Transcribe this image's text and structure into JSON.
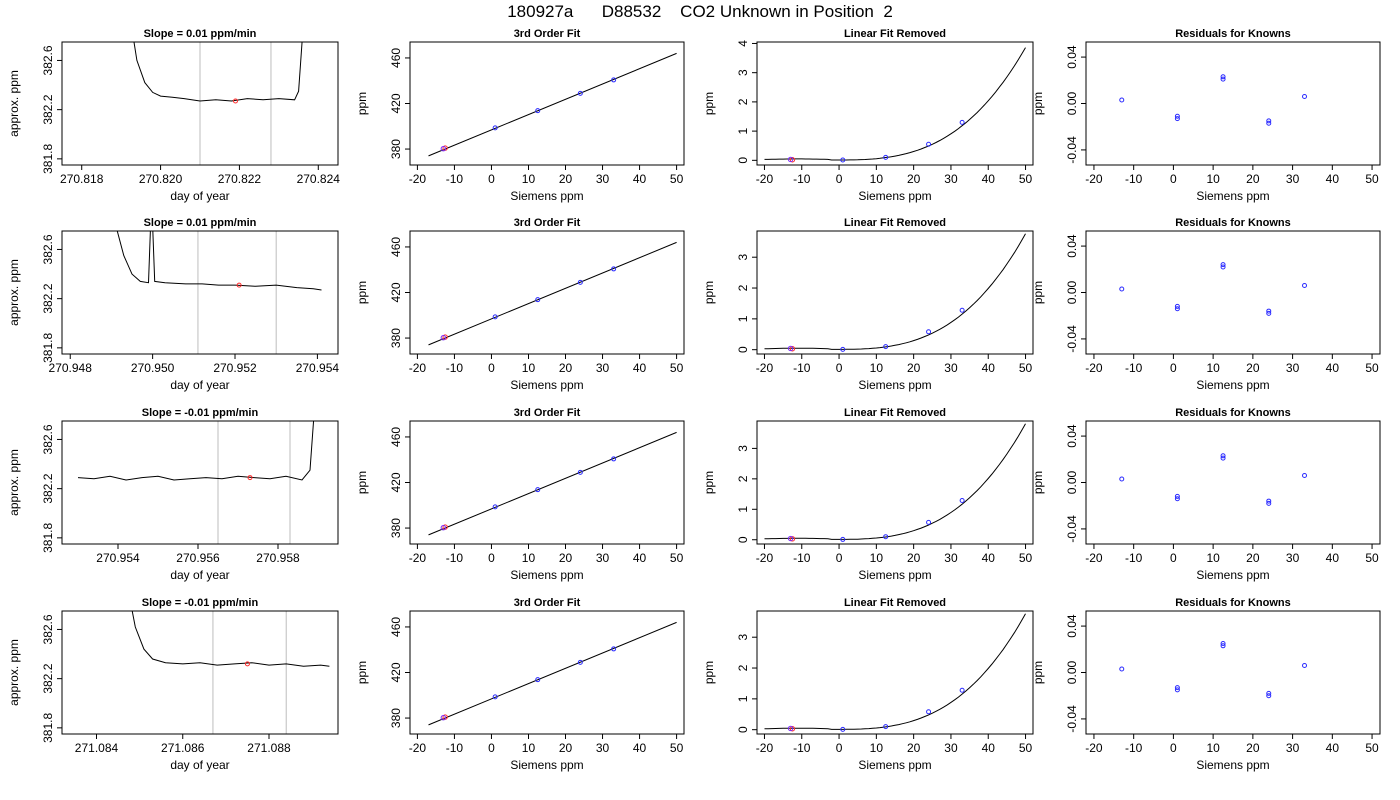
{
  "title": "180927a      D88532    CO2 Unknown in Position  2",
  "colors": {
    "trace": "#000000",
    "marker_red": "#ff2a2a",
    "marker_blue": "#2b2bff",
    "marker_purple": "#7a2bff",
    "vline": "#c8c8c8"
  },
  "chart_data": [
    {
      "type": "line",
      "title": "Slope =  0.01  ppm/min",
      "xlabel": "day of year",
      "ylabel": "approx. ppm",
      "xlim": [
        270.8175,
        270.8245
      ],
      "ylim": [
        381.75,
        382.75
      ],
      "xticks": [
        270.818,
        270.82,
        270.822,
        270.824
      ],
      "xtick_labels": [
        "270.818",
        "270.820",
        "270.822",
        "270.824"
      ],
      "yticks": [
        381.8,
        382.2,
        382.6
      ],
      "ytick_labels": [
        "381.8",
        "382.2",
        "382.6"
      ],
      "vlines": [
        270.821,
        270.8228
      ],
      "marker": {
        "x": 270.8219,
        "y": 382.27
      },
      "trace": [
        [
          270.8193,
          382.8
        ],
        [
          270.8194,
          382.6
        ],
        [
          270.8196,
          382.42
        ],
        [
          270.8198,
          382.34
        ],
        [
          270.82,
          382.31
        ],
        [
          270.8203,
          382.3
        ],
        [
          270.8206,
          382.29
        ],
        [
          270.821,
          382.27
        ],
        [
          270.8214,
          382.28
        ],
        [
          270.8218,
          382.27
        ],
        [
          270.8222,
          382.29
        ],
        [
          270.8226,
          382.28
        ],
        [
          270.823,
          382.29
        ],
        [
          270.8234,
          382.28
        ],
        [
          270.8235,
          382.35
        ],
        [
          270.8236,
          382.8
        ]
      ]
    },
    {
      "type": "line",
      "title": "3rd Order Fit",
      "xlabel": "Siemens ppm",
      "ylabel": "ppm",
      "xlim": [
        -22,
        52
      ],
      "ylim": [
        366,
        474
      ],
      "xticks": [
        -20,
        -10,
        0,
        10,
        20,
        30,
        40,
        50
      ],
      "yticks": [
        380,
        420,
        460
      ],
      "fit": {
        "x0": -17,
        "y0": 374,
        "x1": 50,
        "y1": 464
      },
      "points_blue": [
        [
          1,
          398.6
        ],
        [
          12.5,
          413.7
        ],
        [
          24,
          428.9
        ],
        [
          33,
          440.7
        ]
      ],
      "points_red": [
        [
          -12.5,
          380.9
        ]
      ],
      "points_purple": [
        [
          -13,
          380.3
        ]
      ]
    },
    {
      "type": "line",
      "title": "Linear Fit Removed",
      "xlabel": "Siemens ppm",
      "ylabel": "ppm",
      "xlim": [
        -22,
        52
      ],
      "ylim": [
        -0.16,
        4.05
      ],
      "xticks": [
        -20,
        -10,
        0,
        10,
        20,
        30,
        40,
        50
      ],
      "yticks": [
        0,
        1,
        2,
        3,
        4
      ],
      "curve_end": 3.85,
      "points_blue": [
        [
          1,
          0.01
        ],
        [
          12.5,
          0.1
        ],
        [
          24,
          0.55
        ],
        [
          33,
          1.3
        ]
      ],
      "points_red": [
        [
          -12.5,
          0.02
        ]
      ],
      "points_purple": [
        [
          -13,
          0.03
        ]
      ]
    },
    {
      "type": "scatter",
      "title": "Residuals for Knowns",
      "xlabel": "Siemens ppm",
      "ylabel": "ppm",
      "xlim": [
        -22,
        52
      ],
      "ylim": [
        -0.053,
        0.053
      ],
      "xticks": [
        -20,
        -10,
        0,
        10,
        20,
        30,
        40,
        50
      ],
      "yticks": [
        -0.04,
        0,
        0.04
      ],
      "ytick_labels": [
        "-0.04",
        "0.00",
        "0.04"
      ],
      "points_blue": [
        [
          -13,
          0.003
        ],
        [
          1,
          -0.011
        ],
        [
          1,
          -0.013
        ],
        [
          12.5,
          0.023
        ],
        [
          12.5,
          0.021
        ],
        [
          24,
          -0.015
        ],
        [
          24,
          -0.017
        ],
        [
          33,
          0.006
        ]
      ]
    },
    {
      "type": "line",
      "title": "Slope =  0.01  ppm/min",
      "xlabel": "day of year",
      "ylabel": "approx. ppm",
      "xlim": [
        270.9478,
        270.9545
      ],
      "ylim": [
        381.75,
        382.75
      ],
      "xticks": [
        270.948,
        270.95,
        270.952,
        270.954
      ],
      "xtick_labels": [
        "270.948",
        "270.950",
        "270.952",
        "270.954"
      ],
      "yticks": [
        381.8,
        382.2,
        382.6
      ],
      "ytick_labels": [
        "381.8",
        "382.2",
        "382.6"
      ],
      "vlines": [
        270.9511,
        270.953
      ],
      "marker": {
        "x": 270.9521,
        "y": 382.31
      },
      "trace": [
        [
          270.9491,
          382.8
        ],
        [
          270.9493,
          382.55
        ],
        [
          270.9495,
          382.4
        ],
        [
          270.9497,
          382.34
        ],
        [
          270.9499,
          382.33
        ],
        [
          270.94995,
          382.8
        ],
        [
          270.95,
          382.8
        ],
        [
          270.95005,
          382.34
        ],
        [
          270.9503,
          382.33
        ],
        [
          270.9508,
          382.32
        ],
        [
          270.9512,
          382.32
        ],
        [
          270.9516,
          382.31
        ],
        [
          270.952,
          382.31
        ],
        [
          270.9525,
          382.3
        ],
        [
          270.953,
          382.31
        ],
        [
          270.9535,
          382.29
        ],
        [
          270.9539,
          382.28
        ],
        [
          270.9541,
          382.27
        ]
      ]
    },
    {
      "type": "line",
      "title": "3rd Order Fit",
      "xlabel": "Siemens ppm",
      "ylabel": "ppm",
      "xlim": [
        -22,
        52
      ],
      "ylim": [
        366,
        474
      ],
      "xticks": [
        -20,
        -10,
        0,
        10,
        20,
        30,
        40,
        50
      ],
      "yticks": [
        380,
        420,
        460
      ],
      "fit": {
        "x0": -17,
        "y0": 374,
        "x1": 50,
        "y1": 464
      },
      "points_blue": [
        [
          1,
          398.6
        ],
        [
          12.5,
          413.7
        ],
        [
          24,
          428.9
        ],
        [
          33,
          440.7
        ]
      ],
      "points_red": [
        [
          -12.5,
          380.9
        ]
      ],
      "points_purple": [
        [
          -13,
          380.3
        ]
      ]
    },
    {
      "type": "line",
      "title": "Linear Fit Removed",
      "xlabel": "Siemens ppm",
      "ylabel": "ppm",
      "xlim": [
        -22,
        52
      ],
      "ylim": [
        -0.14,
        3.85
      ],
      "xticks": [
        -20,
        -10,
        0,
        10,
        20,
        30,
        40,
        50
      ],
      "yticks": [
        0,
        1,
        2,
        3
      ],
      "curve_end": 3.75,
      "points_blue": [
        [
          1,
          0.01
        ],
        [
          12.5,
          0.1
        ],
        [
          24,
          0.58
        ],
        [
          33,
          1.28
        ]
      ],
      "points_red": [
        [
          -12.5,
          0.03
        ]
      ],
      "points_purple": [
        [
          -13,
          0.04
        ]
      ]
    },
    {
      "type": "scatter",
      "title": "Residuals for Knowns",
      "xlabel": "Siemens ppm",
      "ylabel": "ppm",
      "xlim": [
        -22,
        52
      ],
      "ylim": [
        -0.053,
        0.053
      ],
      "xticks": [
        -20,
        -10,
        0,
        10,
        20,
        30,
        40,
        50
      ],
      "yticks": [
        -0.04,
        0,
        0.04
      ],
      "ytick_labels": [
        "-0.04",
        "0.00",
        "0.04"
      ],
      "points_blue": [
        [
          -13,
          0.003
        ],
        [
          1,
          -0.012
        ],
        [
          1,
          -0.014
        ],
        [
          12.5,
          0.024
        ],
        [
          12.5,
          0.022
        ],
        [
          24,
          -0.016
        ],
        [
          24,
          -0.018
        ],
        [
          33,
          0.006
        ]
      ]
    },
    {
      "type": "line",
      "title": "Slope =  -0.01  ppm/min",
      "xlabel": "day of year",
      "ylabel": "approx. ppm",
      "xlim": [
        270.9526,
        270.9595
      ],
      "ylim": [
        381.75,
        382.75
      ],
      "xticks": [
        270.954,
        270.956,
        270.958
      ],
      "xtick_labels": [
        "270.954",
        "270.956",
        "270.958"
      ],
      "yticks": [
        381.8,
        382.2,
        382.6
      ],
      "ytick_labels": [
        "381.8",
        "382.2",
        "382.6"
      ],
      "vlines": [
        270.9565,
        270.9583
      ],
      "marker": {
        "x": 270.9573,
        "y": 382.29
      },
      "trace": [
        [
          270.953,
          382.29
        ],
        [
          270.9534,
          382.28
        ],
        [
          270.9538,
          382.3
        ],
        [
          270.9542,
          382.27
        ],
        [
          270.9546,
          382.29
        ],
        [
          270.955,
          382.3
        ],
        [
          270.9554,
          382.27
        ],
        [
          270.9558,
          382.28
        ],
        [
          270.9562,
          382.29
        ],
        [
          270.9566,
          382.28
        ],
        [
          270.957,
          382.3
        ],
        [
          270.9574,
          382.29
        ],
        [
          270.9578,
          382.28
        ],
        [
          270.9582,
          382.3
        ],
        [
          270.9586,
          382.27
        ],
        [
          270.9588,
          382.35
        ],
        [
          270.9589,
          382.8
        ]
      ]
    },
    {
      "type": "line",
      "title": "3rd Order Fit",
      "xlabel": "Siemens ppm",
      "ylabel": "ppm",
      "xlim": [
        -22,
        52
      ],
      "ylim": [
        366,
        474
      ],
      "xticks": [
        -20,
        -10,
        0,
        10,
        20,
        30,
        40,
        50
      ],
      "yticks": [
        380,
        420,
        460
      ],
      "fit": {
        "x0": -17,
        "y0": 374,
        "x1": 50,
        "y1": 464
      },
      "points_blue": [
        [
          1,
          398.6
        ],
        [
          12.5,
          413.7
        ],
        [
          24,
          428.9
        ],
        [
          33,
          440.7
        ]
      ],
      "points_red": [
        [
          -12.5,
          380.9
        ]
      ],
      "points_purple": [
        [
          -13,
          380.3
        ]
      ]
    },
    {
      "type": "line",
      "title": "Linear Fit Removed",
      "xlabel": "Siemens ppm",
      "ylabel": "ppm",
      "xlim": [
        -22,
        52
      ],
      "ylim": [
        -0.14,
        3.9
      ],
      "xticks": [
        -20,
        -10,
        0,
        10,
        20,
        30,
        40,
        50
      ],
      "yticks": [
        0,
        1,
        2,
        3
      ],
      "curve_end": 3.8,
      "points_blue": [
        [
          1,
          0.01
        ],
        [
          12.5,
          0.1
        ],
        [
          24,
          0.57
        ],
        [
          33,
          1.29
        ]
      ],
      "points_red": [
        [
          -12.5,
          0.03
        ]
      ],
      "points_purple": [
        [
          -13,
          0.04
        ]
      ]
    },
    {
      "type": "scatter",
      "title": "Residuals for Knowns",
      "xlabel": "Siemens ppm",
      "ylabel": "ppm",
      "xlim": [
        -22,
        52
      ],
      "ylim": [
        -0.053,
        0.053
      ],
      "xticks": [
        -20,
        -10,
        0,
        10,
        20,
        30,
        40,
        50
      ],
      "yticks": [
        -0.04,
        0,
        0.04
      ],
      "ytick_labels": [
        "-0.04",
        "0.00",
        "0.04"
      ],
      "points_blue": [
        [
          -13,
          0.003
        ],
        [
          1,
          -0.012
        ],
        [
          1,
          -0.014
        ],
        [
          12.5,
          0.023
        ],
        [
          12.5,
          0.021
        ],
        [
          24,
          -0.016
        ],
        [
          24,
          -0.018
        ],
        [
          33,
          0.006
        ]
      ]
    },
    {
      "type": "line",
      "title": "Slope =  -0.01  ppm/min",
      "xlabel": "day of year",
      "ylabel": "approx. ppm",
      "xlim": [
        271.0832,
        271.0896
      ],
      "ylim": [
        381.75,
        382.75
      ],
      "xticks": [
        271.084,
        271.086,
        271.088
      ],
      "xtick_labels": [
        "271.084",
        "271.086",
        "271.088"
      ],
      "yticks": [
        381.8,
        382.2,
        382.6
      ],
      "ytick_labels": [
        "381.8",
        "382.2",
        "382.6"
      ],
      "vlines": [
        271.0867,
        271.0884
      ],
      "marker": {
        "x": 271.0875,
        "y": 382.32
      },
      "trace": [
        [
          271.0848,
          382.8
        ],
        [
          271.0849,
          382.62
        ],
        [
          271.0851,
          382.44
        ],
        [
          271.0853,
          382.36
        ],
        [
          271.0856,
          382.33
        ],
        [
          271.086,
          382.32
        ],
        [
          271.0864,
          382.33
        ],
        [
          271.0868,
          382.31
        ],
        [
          271.0872,
          382.32
        ],
        [
          271.0876,
          382.33
        ],
        [
          271.088,
          382.31
        ],
        [
          271.0884,
          382.32
        ],
        [
          271.0888,
          382.3
        ],
        [
          271.0892,
          382.31
        ],
        [
          271.0894,
          382.3
        ]
      ]
    },
    {
      "type": "line",
      "title": "3rd Order Fit",
      "xlabel": "Siemens ppm",
      "ylabel": "ppm",
      "xlim": [
        -22,
        52
      ],
      "ylim": [
        366,
        474
      ],
      "xticks": [
        -20,
        -10,
        0,
        10,
        20,
        30,
        40,
        50
      ],
      "yticks": [
        380,
        420,
        460
      ],
      "fit": {
        "x0": -17,
        "y0": 374,
        "x1": 50,
        "y1": 464
      },
      "points_blue": [
        [
          1,
          398.6
        ],
        [
          12.5,
          413.7
        ],
        [
          24,
          428.9
        ],
        [
          33,
          440.7
        ]
      ],
      "points_red": [
        [
          -12.5,
          380.9
        ]
      ],
      "points_purple": [
        [
          -13,
          380.3
        ]
      ]
    },
    {
      "type": "line",
      "title": "Linear Fit Removed",
      "xlabel": "Siemens ppm",
      "ylabel": "ppm",
      "xlim": [
        -22,
        52
      ],
      "ylim": [
        -0.14,
        3.85
      ],
      "xticks": [
        -20,
        -10,
        0,
        10,
        20,
        30,
        40,
        50
      ],
      "yticks": [
        0,
        1,
        2,
        3
      ],
      "curve_end": 3.75,
      "points_blue": [
        [
          1,
          0.01
        ],
        [
          12.5,
          0.1
        ],
        [
          24,
          0.58
        ],
        [
          33,
          1.28
        ]
      ],
      "points_red": [
        [
          -12.5,
          0.03
        ]
      ],
      "points_purple": [
        [
          -13,
          0.04
        ]
      ]
    },
    {
      "type": "scatter",
      "title": "Residuals for Knowns",
      "xlabel": "Siemens ppm",
      "ylabel": "ppm",
      "xlim": [
        -22,
        52
      ],
      "ylim": [
        -0.053,
        0.053
      ],
      "xticks": [
        -20,
        -10,
        0,
        10,
        20,
        30,
        40,
        50
      ],
      "yticks": [
        -0.04,
        0,
        0.04
      ],
      "ytick_labels": [
        "-0.04",
        "0.00",
        "0.04"
      ],
      "points_blue": [
        [
          -13,
          0.003
        ],
        [
          1,
          -0.013
        ],
        [
          1,
          -0.015
        ],
        [
          12.5,
          0.025
        ],
        [
          12.5,
          0.023
        ],
        [
          24,
          -0.018
        ],
        [
          24,
          -0.02
        ],
        [
          33,
          0.006
        ]
      ]
    }
  ]
}
